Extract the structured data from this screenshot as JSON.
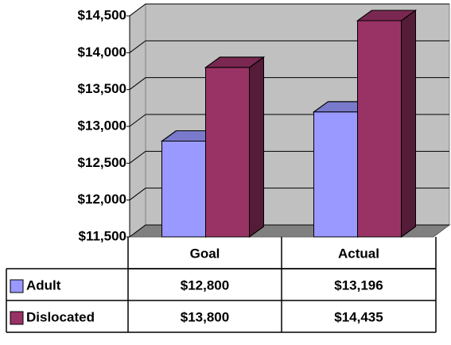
{
  "chart_data": {
    "type": "bar3d",
    "categories": [
      "Goal",
      "Actual"
    ],
    "series": [
      {
        "name": "Adult",
        "color": "#9999ff",
        "values": [
          12800,
          13196
        ],
        "value_labels": [
          "$12,800",
          "$13,196"
        ]
      },
      {
        "name": "Dislocated",
        "color": "#993366",
        "values": [
          13800,
          14435
        ],
        "value_labels": [
          "$13,800",
          "$14,435"
        ]
      }
    ],
    "ylim": [
      11500,
      14500
    ],
    "yticks": [
      {
        "value": 11500,
        "label": "$11,500"
      },
      {
        "value": 12000,
        "label": "$12,000"
      },
      {
        "value": 12500,
        "label": "$12,500"
      },
      {
        "value": 13000,
        "label": "$13,000"
      },
      {
        "value": 13500,
        "label": "$13,500"
      },
      {
        "value": 14000,
        "label": "$14,000"
      },
      {
        "value": 14500,
        "label": "$14,500"
      }
    ],
    "grid": true,
    "legend": "table"
  }
}
